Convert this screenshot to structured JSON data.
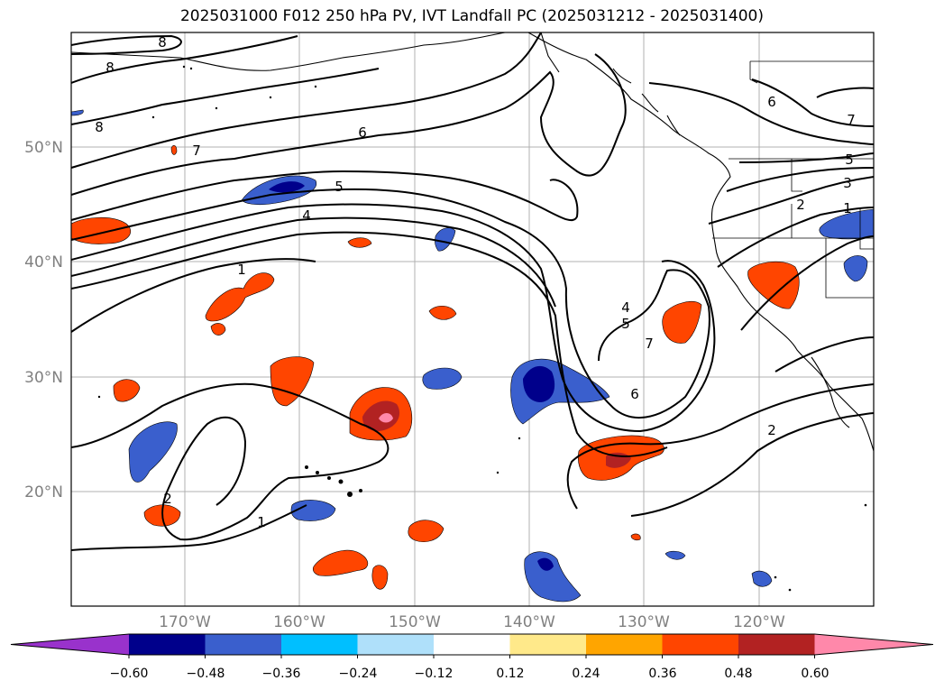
{
  "title": "2025031000 F012 250 hPa PV, IVT Landfall PC (2025031212 - 2025031400)",
  "map": {
    "lat_labels": [
      "50°N",
      "40°N",
      "30°N",
      "20°N"
    ],
    "lon_labels": [
      "170°W",
      "160°W",
      "150°W",
      "140°W",
      "130°W",
      "120°W"
    ],
    "contour_labels": [
      "8",
      "8",
      "8",
      "7",
      "6",
      "5",
      "4",
      "1",
      "4",
      "5",
      "7",
      "6",
      "6",
      "7",
      "5",
      "3",
      "2",
      "1",
      "2",
      "2",
      "1"
    ],
    "pc_fill_colors": {
      "neg_060": "#00008b",
      "neg_048": "#3a5fcd",
      "neg_036": "#00bfff",
      "pos_036": "#ff4500",
      "pos_048": "#b22222",
      "pos_060": "#ff88aa"
    }
  },
  "colorbar": {
    "ticks": [
      "−0.60",
      "−0.48",
      "−0.36",
      "−0.24",
      "−0.12",
      "0.12",
      "0.24",
      "0.36",
      "0.48",
      "0.60"
    ],
    "colors": [
      "#9932cc",
      "#00008b",
      "#3a5fcd",
      "#00bfff",
      "#afe0fa",
      "#ffffff",
      "#ffe98a",
      "#ffa500",
      "#ff4500",
      "#b22222",
      "#ff88aa"
    ]
  }
}
